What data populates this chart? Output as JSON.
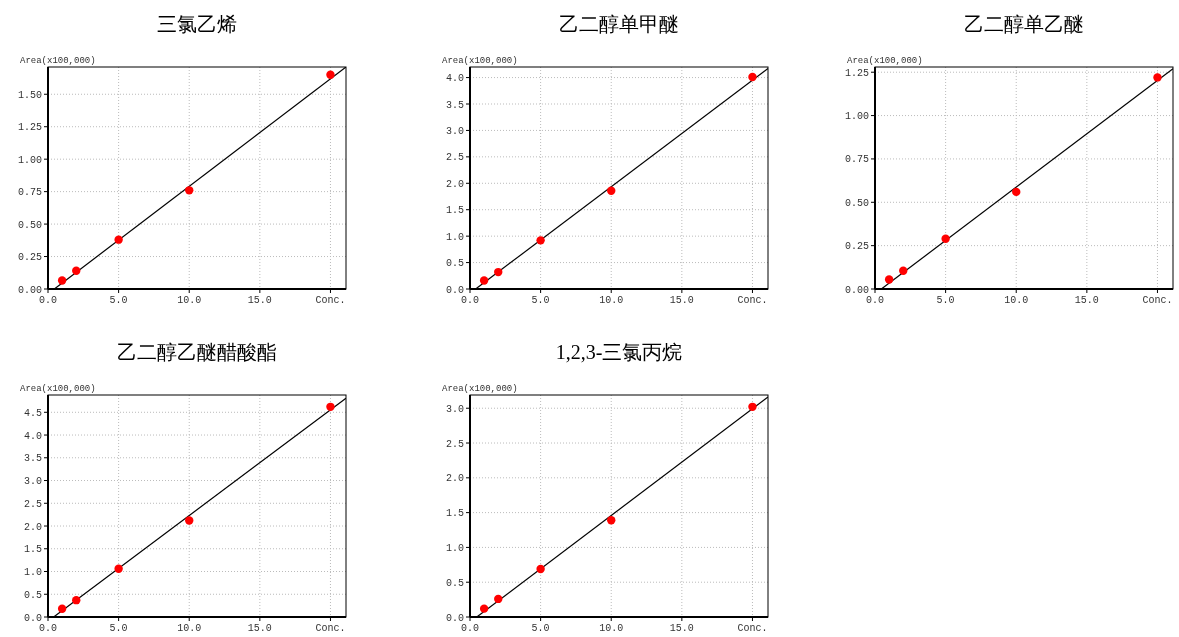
{
  "chart_data": [
    {
      "type": "scatter",
      "title": "三氯乙烯",
      "ylabel": "Area(x100,000)",
      "marker": "circle",
      "grid": true,
      "xlim": [
        0,
        21.1
      ],
      "ylim": [
        0,
        1.71
      ],
      "xticks": [
        {
          "value": 0,
          "label": "0.0"
        },
        {
          "value": 5,
          "label": "5.0"
        },
        {
          "value": 10,
          "label": "10.0"
        },
        {
          "value": 15,
          "label": "15.0"
        },
        {
          "value": 20,
          "label": "Conc."
        }
      ],
      "yticks": [
        {
          "value": 0,
          "label": "0.00"
        },
        0.25,
        {
          "value": 0.5,
          "label": "0.50"
        },
        0.75,
        {
          "value": 1,
          "label": "1.00"
        },
        1.25,
        {
          "value": 1.5,
          "label": "1.50"
        }
      ],
      "series": [
        {
          "color": "#ff0000",
          "x": [
            1,
            2,
            5,
            10,
            20
          ],
          "values": [
            0.065,
            0.14,
            0.38,
            0.76,
            1.65
          ]
        },
        {
          "type": "line",
          "marker": "none",
          "color": "#000000",
          "x": [
            0.45,
            21.1
          ],
          "values": [
            0,
            1.71
          ]
        }
      ]
    },
    {
      "type": "scatter",
      "title": "乙二醇单甲醚",
      "ylabel": "Area(x100,000)",
      "marker": "circle",
      "grid": true,
      "xlim": [
        0,
        21.1
      ],
      "ylim": [
        0,
        4.2
      ],
      "xticks": [
        {
          "value": 0,
          "label": "0.0"
        },
        {
          "value": 5,
          "label": "5.0"
        },
        {
          "value": 10,
          "label": "10.0"
        },
        {
          "value": 15,
          "label": "15.0"
        },
        {
          "value": 20,
          "label": "Conc."
        }
      ],
      "yticks": [
        {
          "value": 0,
          "label": "0.0"
        },
        0.5,
        {
          "value": 1,
          "label": "1.0"
        },
        1.5,
        {
          "value": 2,
          "label": "2.0"
        },
        2.5,
        {
          "value": 3,
          "label": "3.0"
        },
        3.5,
        {
          "value": 4,
          "label": "4.0"
        }
      ],
      "series": [
        {
          "color": "#ff0000",
          "x": [
            1,
            2,
            5,
            10,
            20
          ],
          "values": [
            0.16,
            0.32,
            0.92,
            1.86,
            4.01
          ]
        },
        {
          "type": "line",
          "marker": "none",
          "color": "#000000",
          "x": [
            0.4,
            21.1
          ],
          "values": [
            0,
            4.17
          ]
        }
      ]
    },
    {
      "type": "scatter",
      "title": "乙二醇单乙醚",
      "ylabel": "Area(x100,000)",
      "marker": "circle",
      "grid": true,
      "xlim": [
        0,
        21.1
      ],
      "ylim": [
        0,
        1.28
      ],
      "xticks": [
        {
          "value": 0,
          "label": "0.0"
        },
        {
          "value": 5,
          "label": "5.0"
        },
        {
          "value": 10,
          "label": "10.0"
        },
        {
          "value": 15,
          "label": "15.0"
        },
        {
          "value": 20,
          "label": "Conc."
        }
      ],
      "yticks": [
        {
          "value": 0,
          "label": "0.00"
        },
        0.25,
        {
          "value": 0.5,
          "label": "0.50"
        },
        0.75,
        {
          "value": 1,
          "label": "1.00"
        },
        1.25
      ],
      "series": [
        {
          "color": "#ff0000",
          "x": [
            1,
            2,
            5,
            10,
            20
          ],
          "values": [
            0.055,
            0.105,
            0.29,
            0.56,
            1.22
          ]
        },
        {
          "type": "line",
          "marker": "none",
          "color": "#000000",
          "x": [
            0.45,
            21.1
          ],
          "values": [
            0,
            1.27
          ]
        }
      ]
    },
    {
      "type": "scatter",
      "title": "乙二醇乙醚醋酸酯",
      "ylabel": "Area(x100,000)",
      "marker": "circle",
      "grid": true,
      "xlim": [
        0,
        21.1
      ],
      "ylim": [
        0,
        4.88
      ],
      "xticks": [
        {
          "value": 0,
          "label": "0.0"
        },
        {
          "value": 5,
          "label": "5.0"
        },
        {
          "value": 10,
          "label": "10.0"
        },
        {
          "value": 15,
          "label": "15.0"
        },
        {
          "value": 20,
          "label": "Conc."
        }
      ],
      "yticks": [
        {
          "value": 0,
          "label": "0.0"
        },
        0.5,
        {
          "value": 1,
          "label": "1.0"
        },
        1.5,
        {
          "value": 2,
          "label": "2.0"
        },
        2.5,
        {
          "value": 3,
          "label": "3.0"
        },
        3.5,
        {
          "value": 4,
          "label": "4.0"
        },
        4.5
      ],
      "series": [
        {
          "color": "#ff0000",
          "x": [
            1,
            2,
            5,
            10,
            20
          ],
          "values": [
            0.18,
            0.37,
            1.06,
            2.12,
            4.62
          ]
        },
        {
          "type": "line",
          "marker": "none",
          "color": "#000000",
          "x": [
            0.4,
            21.1
          ],
          "values": [
            0,
            4.81
          ]
        }
      ]
    },
    {
      "type": "scatter",
      "title": "1,2,3-三氯丙烷",
      "ylabel": "Area(x100,000)",
      "marker": "circle",
      "grid": true,
      "xlim": [
        0,
        21.1
      ],
      "ylim": [
        0,
        3.19
      ],
      "xticks": [
        {
          "value": 0,
          "label": "0.0"
        },
        {
          "value": 5,
          "label": "5.0"
        },
        {
          "value": 10,
          "label": "10.0"
        },
        {
          "value": 15,
          "label": "15.0"
        },
        {
          "value": 20,
          "label": "Conc."
        }
      ],
      "yticks": [
        {
          "value": 0,
          "label": "0.0"
        },
        0.5,
        {
          "value": 1,
          "label": "1.0"
        },
        1.5,
        {
          "value": 2,
          "label": "2.0"
        },
        2.5,
        {
          "value": 3,
          "label": "3.0"
        }
      ],
      "series": [
        {
          "color": "#ff0000",
          "x": [
            1,
            2,
            5,
            10,
            20
          ],
          "values": [
            0.12,
            0.26,
            0.69,
            1.39,
            3.02
          ]
        },
        {
          "type": "line",
          "marker": "none",
          "color": "#000000",
          "x": [
            0.48,
            21.1
          ],
          "values": [
            0,
            3.16
          ]
        }
      ]
    }
  ]
}
